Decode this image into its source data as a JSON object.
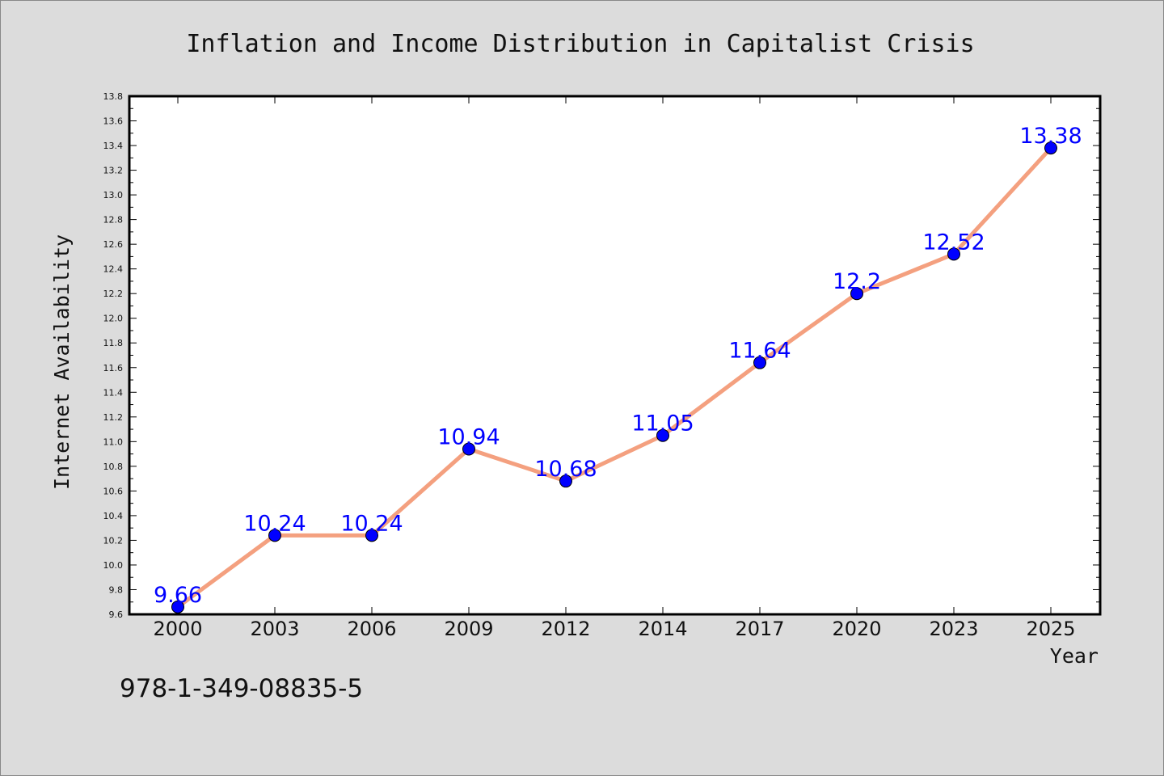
{
  "chart_data": {
    "type": "line",
    "title": "Inflation and Income Distribution in Capitalist Crisis",
    "xlabel": "Year",
    "ylabel": "Internet Availability",
    "categories": [
      "2000",
      "2003",
      "2006",
      "2009",
      "2012",
      "2014",
      "2017",
      "2020",
      "2023",
      "2025"
    ],
    "series": [
      {
        "values": [
          9.66,
          10.24,
          10.24,
          10.94,
          10.68,
          11.05,
          11.64,
          12.2,
          12.52,
          13.38
        ],
        "labels": [
          "9.66",
          "10.24",
          "10.24",
          "10.94",
          "10.68",
          "11.05",
          "11.64",
          "12.2",
          "12.52",
          "13.38"
        ]
      }
    ],
    "ylim": [
      9.6,
      13.8
    ],
    "yticks": [
      "9.6",
      "9.8",
      "10.0",
      "10.2",
      "10.4",
      "10.6",
      "10.8",
      "11.0",
      "11.2",
      "11.4",
      "11.6",
      "11.8",
      "12.0",
      "12.2",
      "12.4",
      "12.6",
      "12.8",
      "13.0",
      "13.2",
      "13.4",
      "13.6",
      "13.8"
    ],
    "grid": false,
    "legend": "none",
    "colors": {
      "line": "#f4a07f",
      "marker": "#0000ff",
      "label": "#0000ff",
      "background": "#dcdcdc",
      "plot_area": "#ffffff"
    }
  },
  "footer": {
    "isbn": "978-1-349-08835-5"
  }
}
